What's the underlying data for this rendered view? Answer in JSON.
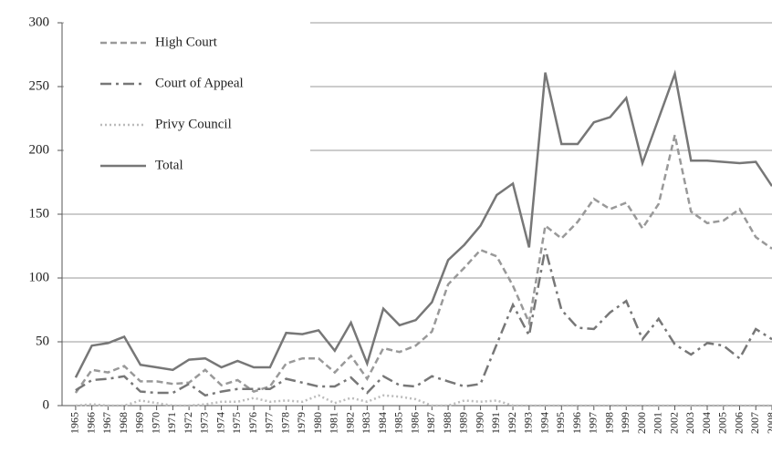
{
  "chart_data": {
    "type": "line",
    "x": [
      1965,
      1966,
      1967,
      1968,
      1969,
      1970,
      1971,
      1972,
      1973,
      1974,
      1975,
      1976,
      1977,
      1978,
      1979,
      1980,
      1981,
      1982,
      1983,
      1984,
      1985,
      1986,
      1987,
      1988,
      1989,
      1990,
      1991,
      1992,
      1993,
      1994,
      1995,
      1996,
      1997,
      1998,
      1999,
      2000,
      2001,
      2002,
      2003,
      2004,
      2005,
      2006,
      2007,
      2008
    ],
    "xlim": [
      1964.16,
      2008
    ],
    "ylim": [
      0,
      300
    ],
    "yticks": [
      0,
      50,
      100,
      150,
      200,
      250,
      300
    ],
    "grid": true,
    "legend": "upper left",
    "series": [
      {
        "name": "High Court",
        "color": "#999999",
        "style": "dashed",
        "values": [
          10,
          28,
          26,
          31,
          19,
          19,
          17,
          18,
          28,
          16,
          20,
          11,
          15,
          33,
          37,
          37,
          26,
          39,
          21,
          45,
          42,
          47,
          58,
          95,
          108,
          122,
          117,
          94,
          65,
          141,
          131,
          144,
          162,
          154,
          159,
          139,
          158,
          212,
          152,
          143,
          145,
          154,
          132,
          123
        ]
      },
      {
        "name": "Court of Appeal",
        "color": "#777777",
        "style": "dashdot",
        "values": [
          12,
          20,
          21,
          23,
          11,
          10,
          10,
          17,
          8,
          11,
          13,
          13,
          13,
          21,
          18,
          15,
          15,
          22,
          10,
          23,
          16,
          15,
          23,
          19,
          15,
          17,
          48,
          79,
          55,
          123,
          75,
          61,
          60,
          73,
          82,
          52,
          68,
          48,
          40,
          49,
          47,
          37,
          60,
          52
        ]
      },
      {
        "name": "Privy Council",
        "color": "#bbbbbb",
        "style": "dotted",
        "values": [
          0,
          1,
          0,
          0,
          4,
          2,
          0,
          0,
          1,
          3,
          3,
          6,
          3,
          4,
          3,
          8,
          2,
          6,
          3,
          8,
          7,
          5,
          0,
          0,
          4,
          3,
          4,
          0,
          0,
          0,
          0,
          0,
          0,
          0,
          0,
          0,
          0,
          0,
          0,
          0,
          0,
          0,
          0,
          0
        ]
      },
      {
        "name": "Total",
        "color": "#777777",
        "style": "solid",
        "values": [
          22,
          47,
          49,
          54,
          32,
          30,
          28,
          36,
          37,
          30,
          35,
          30,
          30,
          57,
          56,
          59,
          43,
          65,
          33,
          76,
          63,
          67,
          81,
          114,
          126,
          141,
          165,
          174,
          124,
          261,
          205,
          205,
          222,
          226,
          241,
          190,
          225,
          260,
          192,
          192,
          191,
          190,
          191,
          172
        ]
      }
    ]
  }
}
